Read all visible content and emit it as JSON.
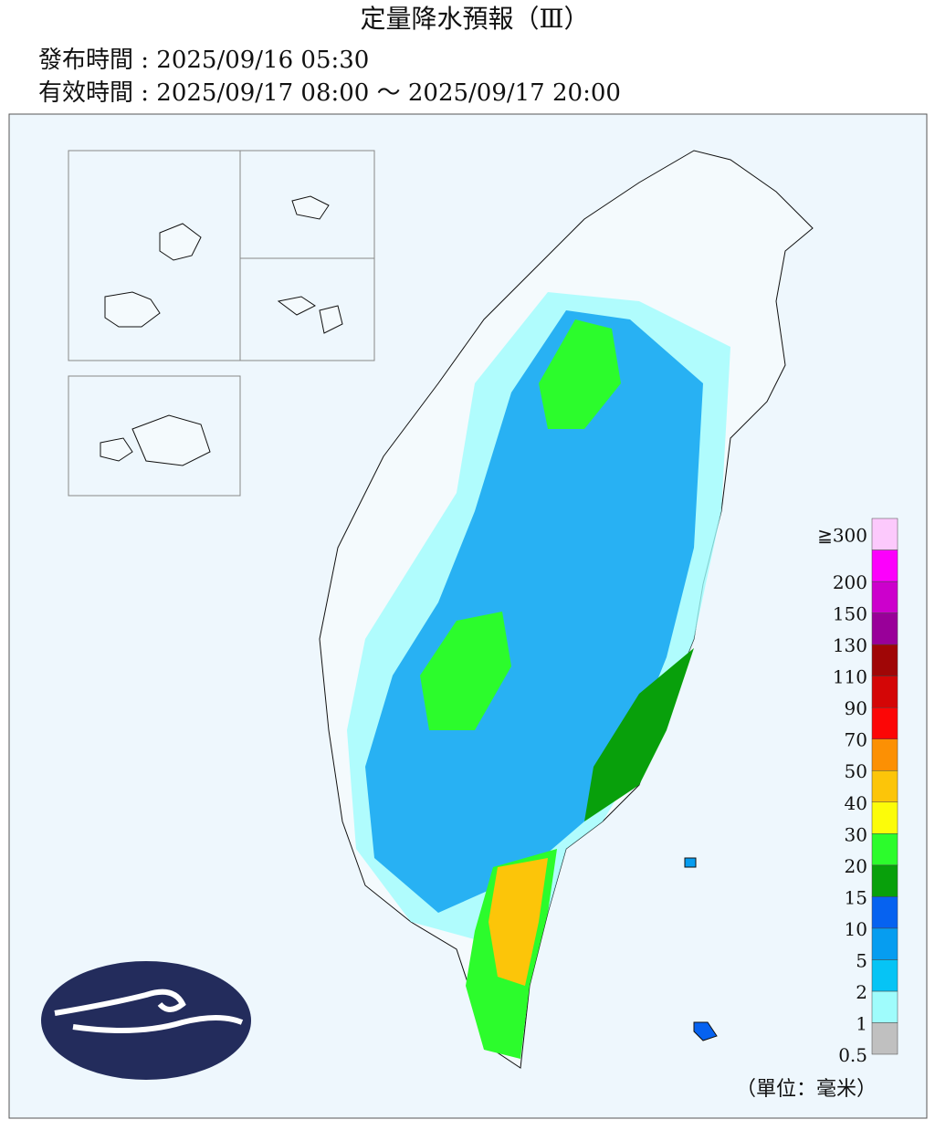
{
  "header": {
    "title": "定量降水預報（Ⅲ）",
    "issued": "發布時間 : 2025/09/16 05:30",
    "valid": "有效時間 : 2025/09/17 08:00 ～ 2025/09/17 20:00"
  },
  "legend": {
    "unit": "（單位：毫米）",
    "items": [
      {
        "label": "0.5",
        "color": "#c0c0c0"
      },
      {
        "label": "1",
        "color": "#9ffcfc"
      },
      {
        "label": "2",
        "color": "#06c4f5"
      },
      {
        "label": "5",
        "color": "#069df0"
      },
      {
        "label": "10",
        "color": "#0662f0"
      },
      {
        "label": "15",
        "color": "#08a00b"
      },
      {
        "label": "20",
        "color": "#2cfc2c"
      },
      {
        "label": "30",
        "color": "#fcfc09"
      },
      {
        "label": "40",
        "color": "#fcc509"
      },
      {
        "label": "50",
        "color": "#fc9004"
      },
      {
        "label": "70",
        "color": "#fc0606"
      },
      {
        "label": "90",
        "color": "#d40606"
      },
      {
        "label": "110",
        "color": "#a00606"
      },
      {
        "label": "130",
        "color": "#990099"
      },
      {
        "label": "150",
        "color": "#cc00cc"
      },
      {
        "label": "200",
        "color": "#fc00fc"
      },
      {
        "label": "≧300",
        "color": "#fcc9fc"
      }
    ]
  }
}
